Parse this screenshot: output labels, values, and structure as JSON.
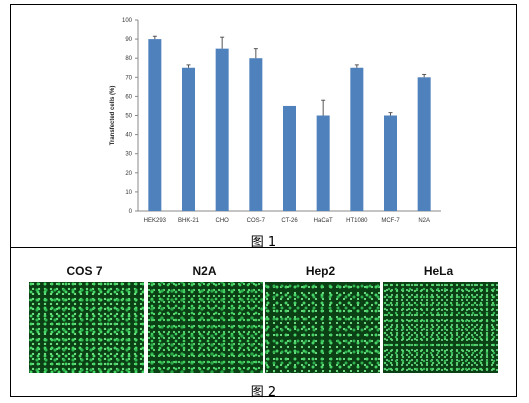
{
  "chart_data": {
    "type": "bar",
    "ylabel": "Transfected cells (%)",
    "xlabel": "",
    "ylim": [
      0,
      100
    ],
    "ytick_step": 10,
    "grid": false,
    "bar_color": "#4f81bd",
    "categories": [
      "HEK293",
      "BHK-21",
      "CHO",
      "COS-7",
      "CT-26",
      "HaCaT",
      "HT1080",
      "MCF-7",
      "N2A"
    ],
    "values": [
      90,
      75,
      85,
      80,
      55,
      50,
      75,
      50,
      70
    ],
    "errors": [
      1.5,
      1.5,
      6,
      5,
      0,
      8,
      1.5,
      1.5,
      1.5
    ]
  },
  "captions": {
    "figure1": "图 1",
    "figure2": "图 2"
  },
  "micrographs": [
    {
      "label": "COS 7"
    },
    {
      "label": "N2A"
    },
    {
      "label": "Hep2"
    },
    {
      "label": "HeLa"
    }
  ],
  "colors": {
    "fluorescence_background": "#0b3f14",
    "fluorescence_cells": "#45d765"
  }
}
